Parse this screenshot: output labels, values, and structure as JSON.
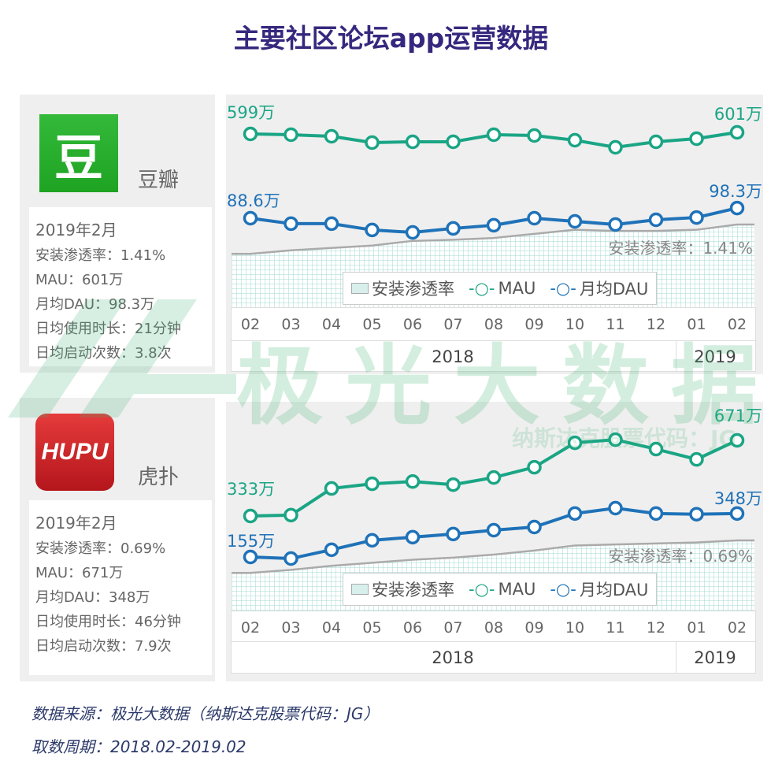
{
  "title": "主要社区论坛app运营数据",
  "colors": {
    "mau": "#1aa585",
    "dau": "#1f72b8",
    "area_edge": "#aaaaaa",
    "area_grid": "#9fd9d2",
    "title": "#36287e"
  },
  "watermark": {
    "main": "极光大数据",
    "sub": "纳斯达克股票代码：JG"
  },
  "apps": [
    {
      "name": "豆瓣",
      "logo_text": "豆",
      "date": "2019年2月",
      "stats": [
        "安装渗透率：1.41%",
        "MAU：601万",
        "月均DAU：98.3万",
        "日均使用时长：21分钟",
        "日均启动次数：3.8次"
      ]
    },
    {
      "name": "虎扑",
      "logo_text": "HUPU",
      "date": "2019年2月",
      "stats": [
        "安装渗透率：0.69%",
        "MAU：671万",
        "月均DAU：348万",
        "日均使用时长：46分钟",
        "日均启动次数：7.9次"
      ]
    }
  ],
  "chart_data": [
    {
      "type": "line",
      "app": "豆瓣",
      "categories": [
        "02",
        "03",
        "04",
        "05",
        "06",
        "07",
        "08",
        "09",
        "10",
        "11",
        "12",
        "01",
        "02"
      ],
      "years": [
        "2018",
        "2019"
      ],
      "legend": [
        "安装渗透率",
        "MAU",
        "月均DAU"
      ],
      "series": [
        {
          "name": "MAU",
          "unit": "万",
          "values": [
            599,
            598,
            596,
            588,
            589,
            589,
            598,
            597,
            591,
            582,
            589,
            593,
            601
          ],
          "labels": {
            "first": "599万",
            "last": "601万"
          }
        },
        {
          "name": "月均DAU",
          "unit": "万",
          "values": [
            88.6,
            83.4,
            83.4,
            77.4,
            75.1,
            78.9,
            81.9,
            88.6,
            85.6,
            82.6,
            87.1,
            89.3,
            98.3
          ],
          "labels": {
            "first": "88.6万",
            "last": "98.3万"
          }
        },
        {
          "name": "安装渗透率",
          "type": "area",
          "unit": "%",
          "values": [
            0.91,
            0.97,
            1.01,
            1.05,
            1.13,
            1.15,
            1.18,
            1.25,
            1.32,
            1.3,
            1.3,
            1.32,
            1.41
          ],
          "annotation": "安装渗透率：1.41%"
        }
      ]
    },
    {
      "type": "line",
      "app": "虎扑",
      "categories": [
        "02",
        "03",
        "04",
        "05",
        "06",
        "07",
        "08",
        "09",
        "10",
        "11",
        "12",
        "01",
        "02"
      ],
      "years": [
        "2018",
        "2019"
      ],
      "legend": [
        "安装渗透率",
        "MAU",
        "月均DAU"
      ],
      "series": [
        {
          "name": "MAU",
          "unit": "万",
          "values": [
            333,
            337,
            456,
            477,
            487,
            473,
            505,
            551,
            660,
            674,
            632,
            586,
            671
          ],
          "labels": {
            "first": "333万",
            "last": "671万"
          }
        },
        {
          "name": "月均DAU",
          "unit": "万",
          "values": [
            155,
            148,
            187,
            229,
            243,
            257,
            274,
            288,
            348,
            372,
            348,
            345,
            348
          ],
          "labels": {
            "first": "155万",
            "last": "348万"
          }
        },
        {
          "name": "安装渗透率",
          "type": "area",
          "unit": "%",
          "values": [
            0.37,
            0.4,
            0.44,
            0.47,
            0.5,
            0.52,
            0.55,
            0.59,
            0.64,
            0.65,
            0.66,
            0.67,
            0.69
          ],
          "annotation": "安装渗透率：0.69%"
        }
      ]
    }
  ],
  "footer": {
    "source": "数据来源：极光大数据（纳斯达克股票代码：JG）",
    "period": "取数周期：2018.02-2019.02"
  }
}
